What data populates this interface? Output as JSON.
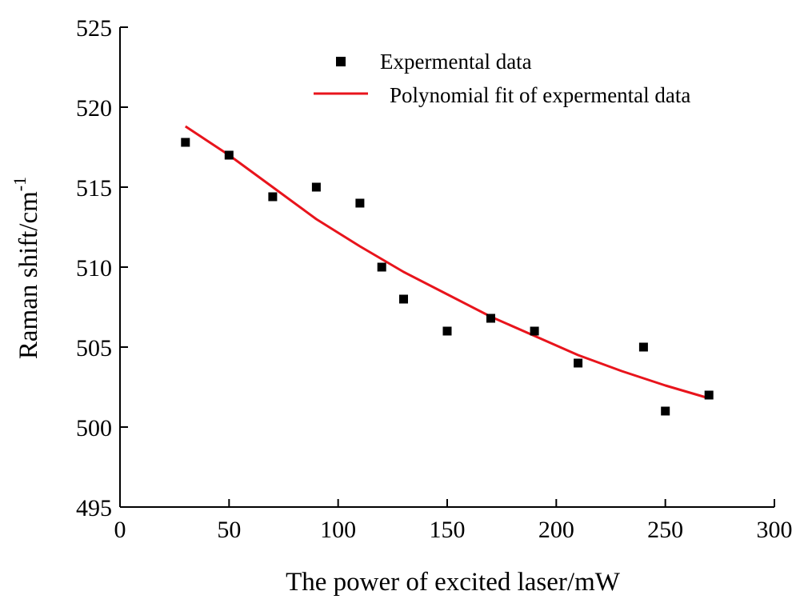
{
  "chart_data": {
    "type": "scatter",
    "title": "",
    "xlabel": "The power of excited laser/mW",
    "ylabel_base": "Raman shift/cm",
    "ylabel_sup": "-1",
    "xlim": [
      0,
      300
    ],
    "ylim": [
      495,
      525
    ],
    "xticks": [
      0,
      50,
      100,
      150,
      200,
      250,
      300
    ],
    "yticks": [
      495,
      500,
      505,
      510,
      515,
      520,
      525
    ],
    "grid": false,
    "legend_position": "top-center",
    "series": [
      {
        "name": "Expermental data",
        "kind": "scatter",
        "marker": "square",
        "color": "#000000",
        "x": [
          30,
          50,
          70,
          90,
          110,
          120,
          130,
          150,
          170,
          190,
          210,
          240,
          250,
          270
        ],
        "y": [
          517.8,
          517.0,
          514.4,
          515.0,
          514.0,
          510.0,
          508.0,
          506.0,
          506.8,
          506.0,
          504.0,
          505.0,
          501.0,
          502.0
        ]
      },
      {
        "name": "Polynomial fit of expermental data",
        "kind": "line",
        "color": "#e8141c",
        "x": [
          30,
          50,
          70,
          90,
          110,
          130,
          150,
          170,
          190,
          210,
          230,
          250,
          270
        ],
        "y": [
          518.8,
          517.0,
          515.0,
          513.0,
          511.3,
          509.7,
          508.3,
          506.9,
          505.7,
          504.5,
          503.5,
          502.6,
          501.8
        ]
      }
    ]
  }
}
